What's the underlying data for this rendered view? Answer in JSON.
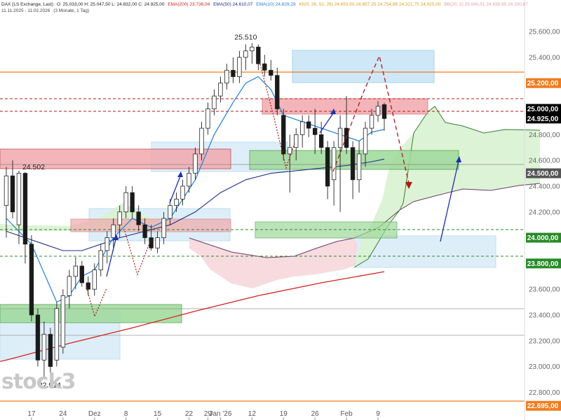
{
  "header": {
    "instrument": "DAX (LS Exchange, Last)",
    "ohlc": "O: 25.033,00  H: 25.047,50  L: 24.832,00  C: 24.925,00",
    "ema200": "EMA(200) 23.736,04",
    "ema50": "EMA(50) 24.610,07",
    "ema10": "EMA(10) 24.829,29",
    "ichimoku": "Kh(9, 26, 52, 26) 24.653,50 24.857,25 24.754,88 24.321,75 24.925,00",
    "ichimoku_extra": "BB(20, 2) 25.040,51 24.838,95 24.100,67",
    "date_range": "11.11.2025 - 11.02.2026",
    "period": "(3 Monate, 1 Tag)"
  },
  "watermark": "stock3",
  "colors": {
    "candle_up": "#ffffff",
    "candle_down": "#1a1a1a",
    "ema10": "#1e7fd6",
    "ema50": "#1f2f8a",
    "ema200": "#d62222",
    "cloud_up": "#d9f2d0",
    "cloud_down": "#f6d7dc",
    "zone_blue": "#cfe8f7",
    "zone_red": "#f1a9ad",
    "zone_green": "#9ed99a",
    "orange_line": "#f07c1e",
    "price_badge": "#000000",
    "arrow_blue": "#1a2fb0",
    "arrow_red": "#b01a1a"
  },
  "chart_data": {
    "type": "candlestick",
    "ylim": [
      22650,
      25780
    ],
    "y_ticks": [
      {
        "value": 25600,
        "label": "25.600,00"
      },
      {
        "value": 25400,
        "label": "25.400,00"
      },
      {
        "value": 25200,
        "label": "25.200,00"
      },
      {
        "value": 25000,
        "label": "25.000,00"
      },
      {
        "value": 24925,
        "label": "24.925,00"
      },
      {
        "value": 24800,
        "label": "24.800,00"
      },
      {
        "value": 24600,
        "label": "24.600,00"
      },
      {
        "value": 24500,
        "label": "24.500,00"
      },
      {
        "value": 24400,
        "label": "24.400,00"
      },
      {
        "value": 24200,
        "label": "24.200,00"
      },
      {
        "value": 24000,
        "label": "24.000,00"
      },
      {
        "value": 23800,
        "label": "23.800,00"
      },
      {
        "value": 23600,
        "label": "23.600,00"
      },
      {
        "value": 23400,
        "label": "23.400,00"
      },
      {
        "value": 23200,
        "label": "23.200,00"
      },
      {
        "value": 23000,
        "label": "23.000,00"
      },
      {
        "value": 22800,
        "label": "22.800,00"
      },
      {
        "value": 22695,
        "label": "22.695,00"
      }
    ],
    "badge_ticks": [
      25200,
      25000,
      24925,
      24500,
      24000,
      23800,
      22695
    ],
    "x_ticks": [
      {
        "i": 4,
        "label": "17"
      },
      {
        "i": 9,
        "label": "24"
      },
      {
        "i": 14,
        "label": "Dez"
      },
      {
        "i": 19,
        "label": "8"
      },
      {
        "i": 24,
        "label": "15"
      },
      {
        "i": 29,
        "label": "22"
      },
      {
        "i": 32,
        "label": "29"
      },
      {
        "i": 34,
        "label": "Jan '26"
      },
      {
        "i": 39,
        "label": "12"
      },
      {
        "i": 44,
        "label": "19"
      },
      {
        "i": 49,
        "label": "26"
      },
      {
        "i": 54,
        "label": "Feb"
      },
      {
        "i": 59,
        "label": "9"
      }
    ],
    "candles": [
      {
        "o": 24250,
        "h": 24550,
        "l": 24000,
        "c": 24480
      },
      {
        "o": 24480,
        "h": 24600,
        "l": 24150,
        "c": 24200
      },
      {
        "o": 24100,
        "h": 24520,
        "l": 23950,
        "c": 24500
      },
      {
        "o": 24500,
        "h": 24510,
        "l": 23800,
        "c": 23950
      },
      {
        "o": 23950,
        "h": 24020,
        "l": 23350,
        "c": 23400
      },
      {
        "o": 23400,
        "h": 23450,
        "l": 23000,
        "c": 23050
      },
      {
        "o": 23050,
        "h": 23350,
        "l": 22914,
        "c": 23250
      },
      {
        "o": 23250,
        "h": 23300,
        "l": 22950,
        "c": 23000
      },
      {
        "o": 23050,
        "h": 23500,
        "l": 23000,
        "c": 23450
      },
      {
        "o": 23150,
        "h": 23600,
        "l": 23100,
        "c": 23550
      },
      {
        "o": 23550,
        "h": 23750,
        "l": 23450,
        "c": 23700
      },
      {
        "o": 23700,
        "h": 23850,
        "l": 23600,
        "c": 23780
      },
      {
        "o": 23780,
        "h": 23820,
        "l": 23620,
        "c": 23650
      },
      {
        "o": 23650,
        "h": 23700,
        "l": 23550,
        "c": 23600
      },
      {
        "o": 23600,
        "h": 23800,
        "l": 23550,
        "c": 23750
      },
      {
        "o": 23750,
        "h": 23950,
        "l": 23700,
        "c": 23900
      },
      {
        "o": 23900,
        "h": 24050,
        "l": 23800,
        "c": 24000
      },
      {
        "o": 24000,
        "h": 24150,
        "l": 23900,
        "c": 24100
      },
      {
        "o": 24100,
        "h": 24250,
        "l": 24000,
        "c": 24200
      },
      {
        "o": 24200,
        "h": 24400,
        "l": 24150,
        "c": 24350
      },
      {
        "o": 24350,
        "h": 24400,
        "l": 24150,
        "c": 24200
      },
      {
        "o": 24200,
        "h": 24250,
        "l": 24050,
        "c": 24100
      },
      {
        "o": 24100,
        "h": 24150,
        "l": 23950,
        "c": 24000
      },
      {
        "o": 24000,
        "h": 24100,
        "l": 23900,
        "c": 23920
      },
      {
        "o": 23920,
        "h": 24050,
        "l": 23880,
        "c": 24000
      },
      {
        "o": 24000,
        "h": 24200,
        "l": 23950,
        "c": 24150
      },
      {
        "o": 24150,
        "h": 24300,
        "l": 24100,
        "c": 24250
      },
      {
        "o": 24250,
        "h": 24350,
        "l": 24200,
        "c": 24300
      },
      {
        "o": 24300,
        "h": 24450,
        "l": 24250,
        "c": 24400
      },
      {
        "o": 24400,
        "h": 24550,
        "l": 24350,
        "c": 24500
      },
      {
        "o": 24500,
        "h": 24700,
        "l": 24450,
        "c": 24650
      },
      {
        "o": 24650,
        "h": 24900,
        "l": 24600,
        "c": 24850
      },
      {
        "o": 24850,
        "h": 25050,
        "l": 24800,
        "c": 25000
      },
      {
        "o": 25000,
        "h": 25150,
        "l": 24950,
        "c": 25100
      },
      {
        "o": 25100,
        "h": 25250,
        "l": 25050,
        "c": 25200
      },
      {
        "o": 25200,
        "h": 25350,
        "l": 25150,
        "c": 25300
      },
      {
        "o": 25300,
        "h": 25400,
        "l": 25200,
        "c": 25250
      },
      {
        "o": 25250,
        "h": 25450,
        "l": 25200,
        "c": 25400
      },
      {
        "o": 25400,
        "h": 25500,
        "l": 25300,
        "c": 25450
      },
      {
        "o": 25450,
        "h": 25510,
        "l": 25350,
        "c": 25480
      },
      {
        "o": 25480,
        "h": 25500,
        "l": 25300,
        "c": 25350
      },
      {
        "o": 25350,
        "h": 25420,
        "l": 25250,
        "c": 25300
      },
      {
        "o": 25300,
        "h": 25380,
        "l": 25220,
        "c": 25260
      },
      {
        "o": 25260,
        "h": 25320,
        "l": 24950,
        "c": 25000
      },
      {
        "o": 24950,
        "h": 25000,
        "l": 24600,
        "c": 24650
      },
      {
        "o": 24650,
        "h": 24800,
        "l": 24350,
        "c": 24700
      },
      {
        "o": 24700,
        "h": 24850,
        "l": 24600,
        "c": 24800
      },
      {
        "o": 24800,
        "h": 24950,
        "l": 24700,
        "c": 24900
      },
      {
        "o": 24900,
        "h": 24950,
        "l": 24780,
        "c": 24850
      },
      {
        "o": 24850,
        "h": 25000,
        "l": 24650,
        "c": 24800
      },
      {
        "o": 24800,
        "h": 24900,
        "l": 24650,
        "c": 24700
      },
      {
        "o": 24700,
        "h": 24750,
        "l": 24300,
        "c": 24400
      },
      {
        "o": 24450,
        "h": 24750,
        "l": 24250,
        "c": 24700
      },
      {
        "o": 24700,
        "h": 24950,
        "l": 24200,
        "c": 24850
      },
      {
        "o": 24850,
        "h": 25100,
        "l": 24650,
        "c": 24700
      },
      {
        "o": 24700,
        "h": 24750,
        "l": 24300,
        "c": 24450
      },
      {
        "o": 24450,
        "h": 24750,
        "l": 24350,
        "c": 24650
      },
      {
        "o": 24650,
        "h": 24900,
        "l": 24550,
        "c": 24850
      },
      {
        "o": 24850,
        "h": 25000,
        "l": 24800,
        "c": 24950
      },
      {
        "o": 24950,
        "h": 25060,
        "l": 24900,
        "c": 25020
      },
      {
        "o": 25033,
        "h": 25047.5,
        "l": 24832,
        "c": 24925
      }
    ],
    "ema10": [
      [
        0,
        24150
      ],
      [
        4,
        23950
      ],
      [
        8,
        23500
      ],
      [
        10,
        23550
      ],
      [
        12,
        23700
      ],
      [
        14,
        23750
      ],
      [
        17,
        24000
      ],
      [
        20,
        24150
      ],
      [
        23,
        24080
      ],
      [
        26,
        24150
      ],
      [
        30,
        24450
      ],
      [
        33,
        24800
      ],
      [
        36,
        25050
      ],
      [
        38,
        25200
      ],
      [
        40,
        25250
      ],
      [
        42,
        25150
      ],
      [
        44,
        24950
      ],
      [
        47,
        24900
      ],
      [
        50,
        24850
      ],
      [
        53,
        24800
      ],
      [
        56,
        24750
      ],
      [
        58,
        24820
      ],
      [
        60,
        24840
      ]
    ],
    "ema50": [
      [
        0,
        24050
      ],
      [
        3,
        24000
      ],
      [
        6,
        23950
      ],
      [
        9,
        23900
      ],
      [
        12,
        23900
      ],
      [
        15,
        23950
      ],
      [
        18,
        24000
      ],
      [
        22,
        24050
      ],
      [
        26,
        24100
      ],
      [
        30,
        24200
      ],
      [
        34,
        24350
      ],
      [
        38,
        24450
      ],
      [
        42,
        24500
      ],
      [
        46,
        24520
      ],
      [
        50,
        24540
      ],
      [
        54,
        24560
      ],
      [
        58,
        24590
      ],
      [
        60,
        24610
      ]
    ],
    "ema200": [
      [
        0,
        23050
      ],
      [
        10,
        23180
      ],
      [
        20,
        23300
      ],
      [
        30,
        23430
      ],
      [
        40,
        23550
      ],
      [
        50,
        23650
      ],
      [
        60,
        23736
      ]
    ],
    "annotations": [
      {
        "type": "high",
        "i": 38,
        "value": 25510,
        "label": "25.510"
      },
      {
        "type": "low",
        "i": 6,
        "value": 22914,
        "label": "22.914"
      },
      {
        "type": "level",
        "value": 24502,
        "label": "24.502"
      }
    ]
  }
}
